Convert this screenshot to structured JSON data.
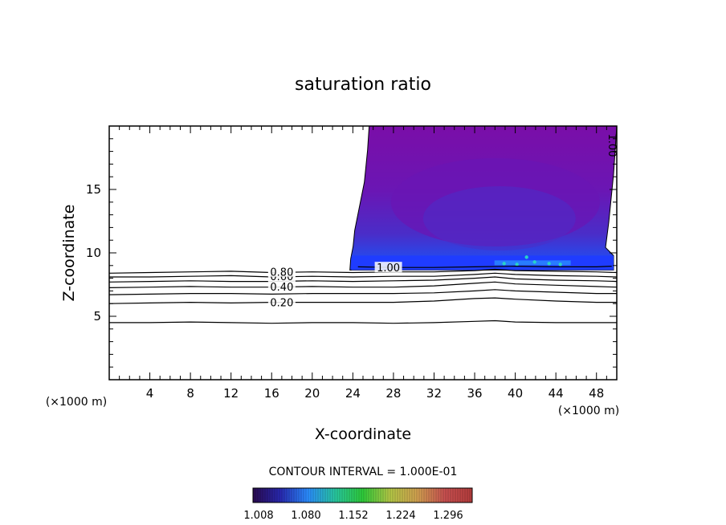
{
  "chart_data": {
    "type": "contour",
    "title": "saturation ratio",
    "xlabel": "X-coordinate",
    "ylabel": "Z-coordinate",
    "x_unit_left": "(×1000 m)",
    "x_unit_right": "(×1000 m)",
    "xlim": [
      0,
      50
    ],
    "ylim": [
      0,
      20
    ],
    "x_ticks": [
      "4",
      "8",
      "12",
      "16",
      "20",
      "24",
      "28",
      "32",
      "36",
      "40",
      "44",
      "48"
    ],
    "y_ticks": [
      "5",
      "10",
      "15"
    ],
    "contour_interval_label": "CONTOUR INTERVAL = 1.000E-01",
    "contour_lines": [
      {
        "level_label": "0.20",
        "x": [
          0,
          4,
          8,
          12,
          16,
          20,
          24,
          28,
          32,
          36,
          38,
          40,
          44,
          48,
          50
        ],
        "z": [
          6.0,
          6.05,
          6.1,
          6.05,
          6.1,
          6.1,
          6.1,
          6.1,
          6.2,
          6.4,
          6.45,
          6.35,
          6.2,
          6.1,
          6.1
        ]
      },
      {
        "level_label": "",
        "x": [
          0,
          4,
          8,
          12,
          16,
          20,
          24,
          28,
          32,
          36,
          38,
          40,
          44,
          48,
          50
        ],
        "z": [
          4.5,
          4.5,
          4.55,
          4.5,
          4.45,
          4.5,
          4.5,
          4.45,
          4.5,
          4.6,
          4.65,
          4.55,
          4.5,
          4.5,
          4.5
        ]
      },
      {
        "level_label": "",
        "x": [
          0,
          4,
          8,
          12,
          16,
          20,
          24,
          28,
          32,
          36,
          38,
          40,
          44,
          48,
          50
        ],
        "z": [
          6.7,
          6.75,
          6.8,
          6.8,
          6.75,
          6.8,
          6.8,
          6.8,
          6.85,
          7.0,
          7.1,
          7.0,
          6.9,
          6.8,
          6.8
        ]
      },
      {
        "level_label": "0.40",
        "x": [
          0,
          4,
          8,
          12,
          16,
          20,
          24,
          28,
          32,
          36,
          38,
          40,
          44,
          48,
          50
        ],
        "z": [
          7.25,
          7.3,
          7.35,
          7.3,
          7.3,
          7.35,
          7.3,
          7.3,
          7.4,
          7.6,
          7.7,
          7.55,
          7.45,
          7.35,
          7.3
        ]
      },
      {
        "level_label": "",
        "x": [
          0,
          4,
          8,
          12,
          16,
          20,
          24,
          28,
          32,
          36,
          38,
          40,
          44,
          48,
          50
        ],
        "z": [
          7.7,
          7.75,
          7.8,
          7.75,
          7.75,
          7.8,
          7.75,
          7.8,
          7.85,
          8.0,
          8.1,
          7.95,
          7.85,
          7.8,
          7.75
        ]
      },
      {
        "level_label": "0.60",
        "x": [
          0,
          4,
          8,
          12,
          16,
          20,
          24,
          28,
          32,
          36,
          38,
          40,
          44,
          48,
          50
        ],
        "z": [
          8.1,
          8.1,
          8.15,
          8.2,
          8.1,
          8.15,
          8.1,
          8.15,
          8.15,
          8.3,
          8.4,
          8.3,
          8.2,
          8.15,
          8.1
        ]
      },
      {
        "level_label": "0.80",
        "x": [
          0,
          4,
          8,
          12,
          16,
          20,
          24,
          28,
          32,
          36,
          38,
          40,
          44,
          48,
          50
        ],
        "z": [
          8.4,
          8.45,
          8.5,
          8.55,
          8.45,
          8.5,
          8.45,
          8.5,
          8.5,
          8.6,
          8.7,
          8.6,
          8.55,
          8.5,
          8.45
        ]
      },
      {
        "level_label": "1.00",
        "x": [
          24.5,
          28,
          32,
          36,
          40,
          44,
          48,
          49.5
        ],
        "z": [
          8.9,
          8.85,
          8.85,
          8.9,
          8.95,
          8.9,
          8.9,
          8.95
        ]
      }
    ],
    "right_edge_label": "1.00",
    "colorbar": {
      "tick_labels": [
        "1.008",
        "1.080",
        "1.152",
        "1.224",
        "1.296"
      ],
      "colors": [
        "#2a0a50",
        "#2828b0",
        "#2a8cff",
        "#28c8a0",
        "#2ecc3a",
        "#b4c846",
        "#d2a050",
        "#c85050",
        "#b43c3c"
      ]
    },
    "shaded_region": {
      "x_range": [
        24.5,
        50
      ],
      "z_range": [
        8.9,
        20
      ],
      "colors": [
        "#7a0ea8",
        "#6a16b4",
        "#4a2dc8",
        "#1f3cff",
        "#2a8cff",
        "#28d2c8"
      ]
    }
  }
}
